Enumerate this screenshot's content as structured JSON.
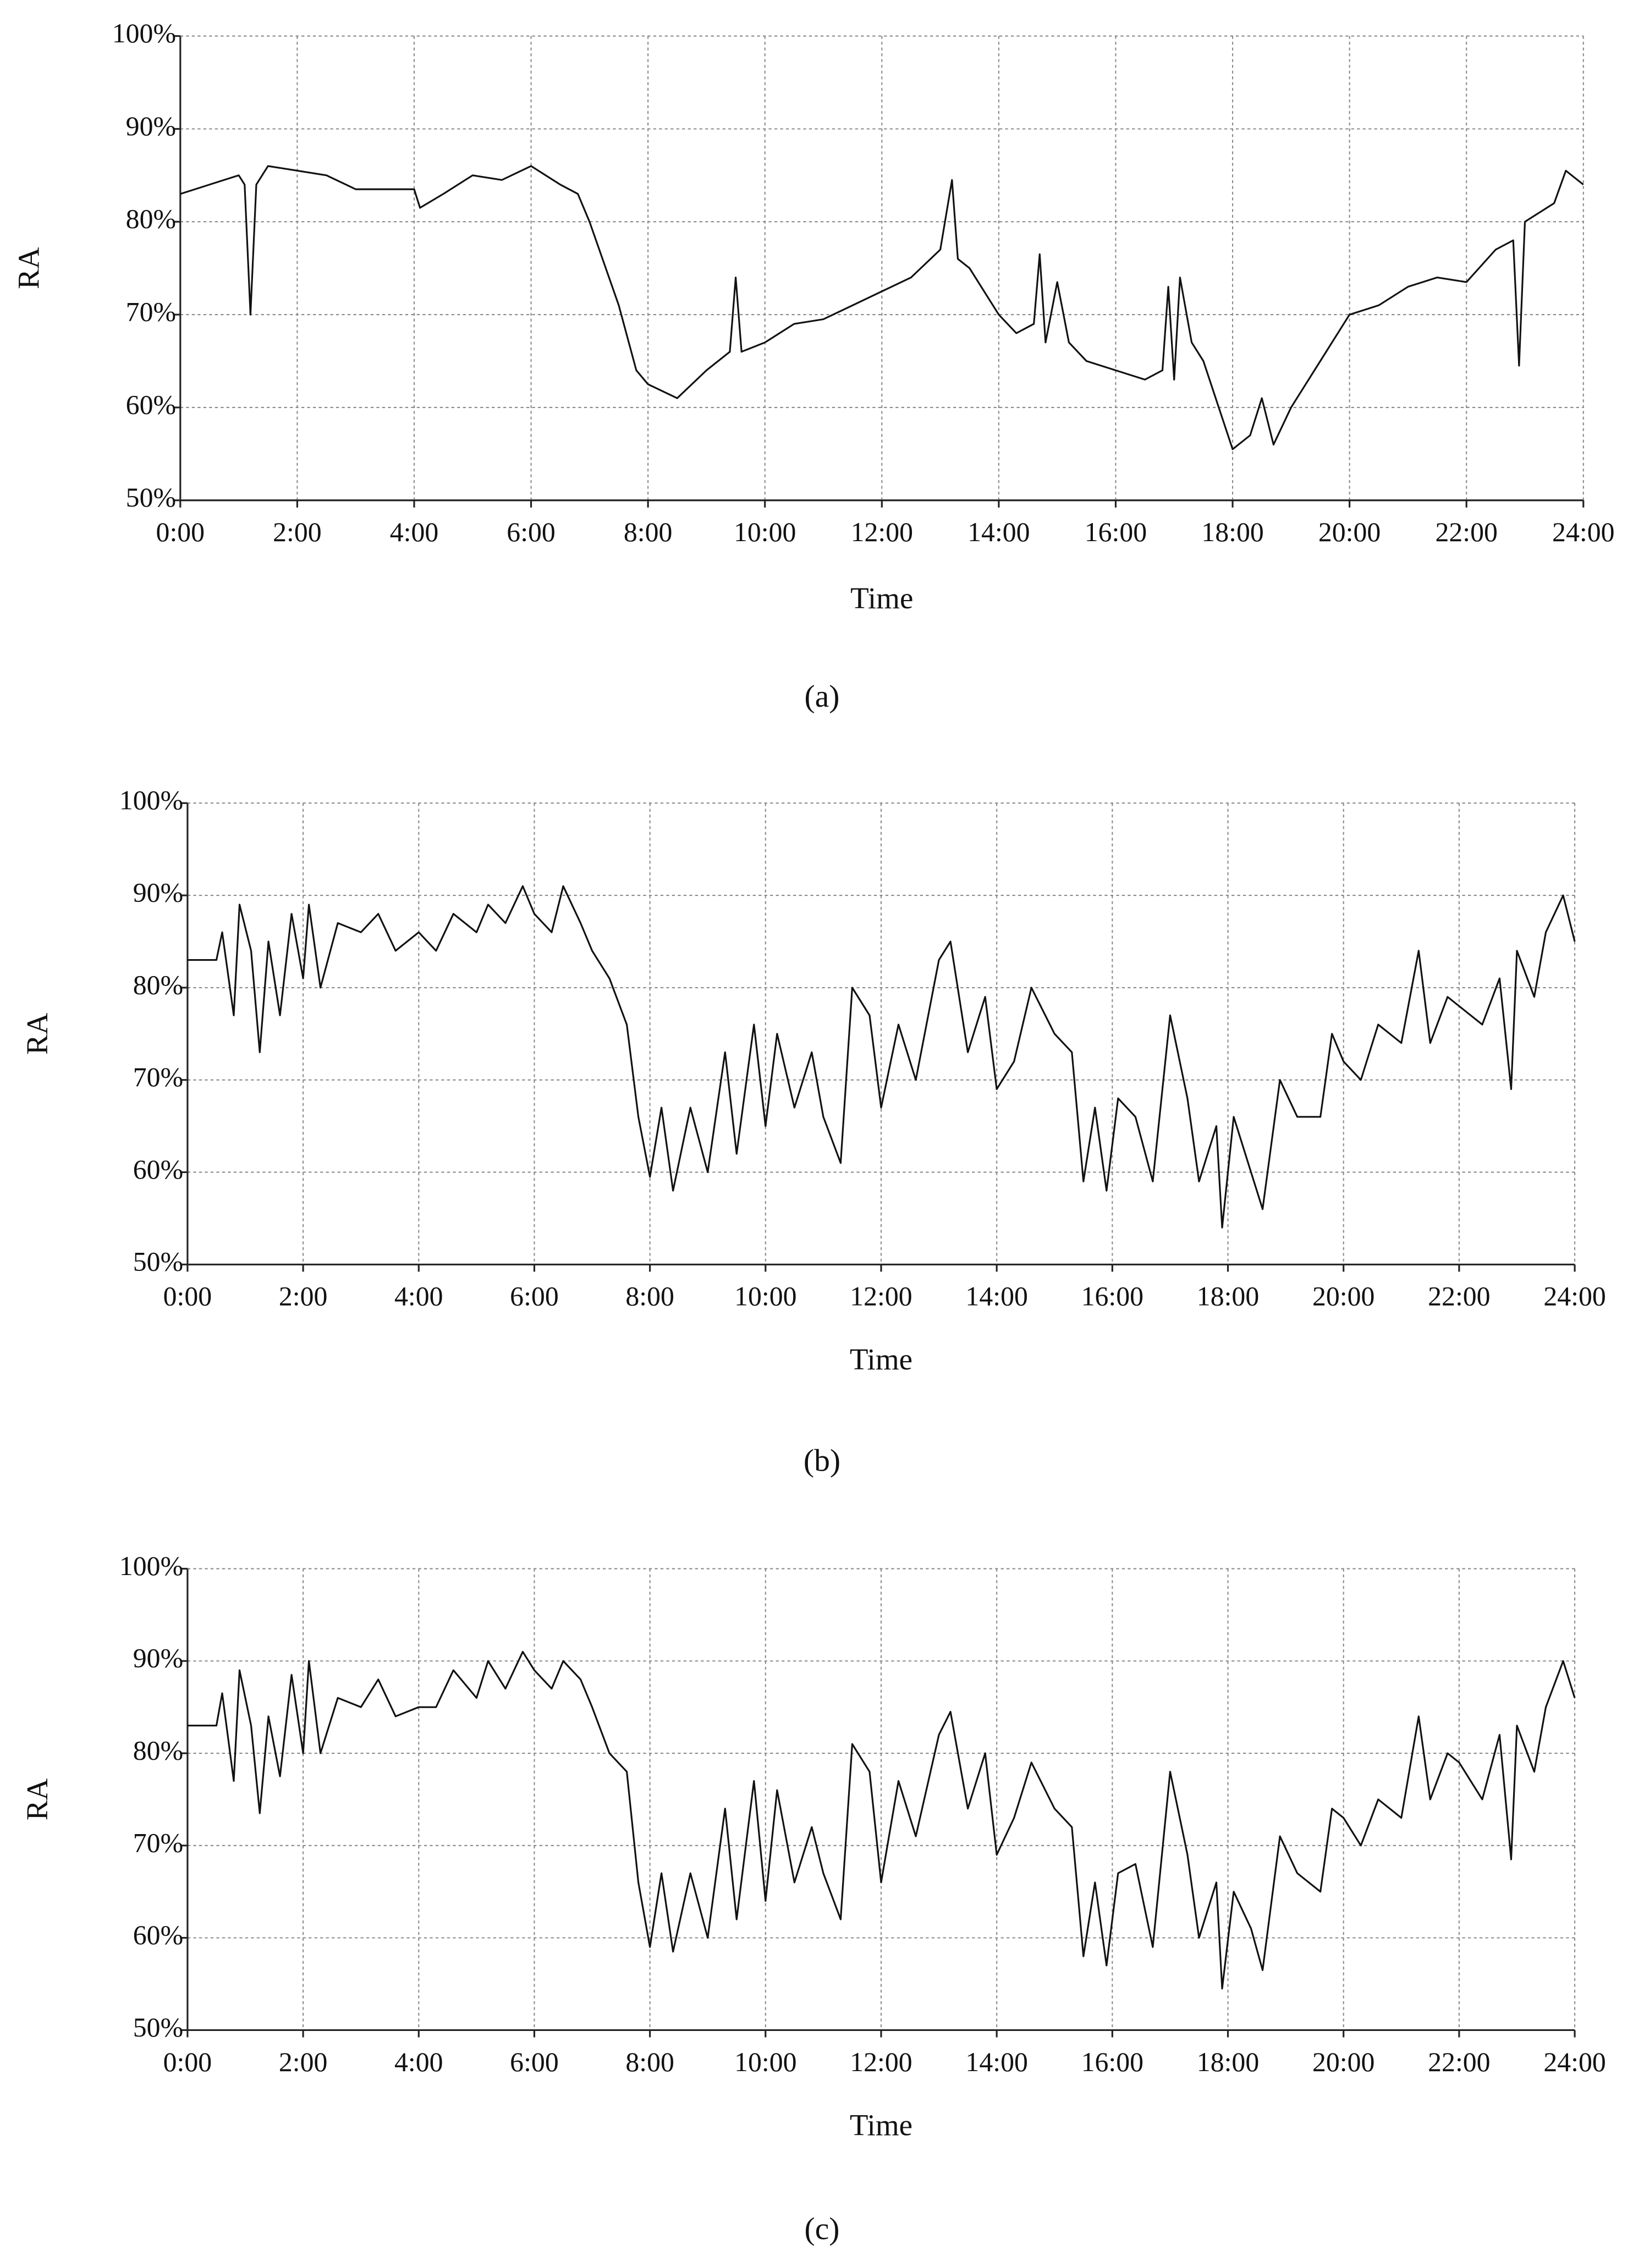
{
  "chart_data": [
    {
      "type": "line",
      "caption": "(a)",
      "x_label": "Time",
      "y_label": "RA",
      "x": [
        0,
        0.5,
        1,
        1.1,
        1.2,
        1.3,
        1.5,
        2,
        2.5,
        3,
        3.5,
        4,
        4.1,
        4.5,
        5,
        5.5,
        6,
        6.5,
        6.8,
        7,
        7.5,
        7.8,
        8,
        8.5,
        9,
        9.4,
        9.5,
        9.6,
        10,
        10.5,
        11,
        11.5,
        12,
        12.5,
        13,
        13.2,
        13.3,
        13.5,
        14,
        14.3,
        14.6,
        14.7,
        14.8,
        15,
        15.2,
        15.5,
        16,
        16.5,
        16.8,
        16.9,
        17,
        17.1,
        17.3,
        17.5,
        18,
        18.3,
        18.5,
        18.7,
        19,
        19.5,
        20,
        20.5,
        21,
        21.5,
        22,
        22.5,
        22.8,
        22.9,
        23,
        23.5,
        23.7,
        24
      ],
      "series": [
        {
          "color": "#111111",
          "values": [
            83,
            84,
            85,
            84,
            70,
            84,
            86,
            85.5,
            85,
            83.5,
            83.5,
            83.5,
            81.5,
            83,
            85,
            84.5,
            86,
            84,
            83,
            80,
            71,
            64,
            62.5,
            61,
            64,
            66,
            74,
            66,
            67,
            69,
            69.5,
            71,
            72.5,
            74,
            77,
            84.5,
            76,
            75,
            70,
            68,
            69,
            76.5,
            67,
            73.5,
            67,
            65,
            64,
            63,
            64,
            73,
            63,
            74,
            67,
            65,
            55.5,
            57,
            61,
            56,
            60,
            65,
            70,
            71,
            73,
            74,
            73.5,
            77,
            78,
            64.5,
            80,
            82,
            85.5,
            84
          ]
        }
      ],
      "xlim": [
        0,
        24
      ],
      "ylim": [
        50,
        100
      ],
      "grid": true,
      "xticks": [
        {
          "value": 0,
          "label": "0:00"
        },
        {
          "value": 2,
          "label": "2:00"
        },
        {
          "value": 4,
          "label": "4:00"
        },
        {
          "value": 6,
          "label": "6:00"
        },
        {
          "value": 8,
          "label": "8:00"
        },
        {
          "value": 10,
          "label": "10:00"
        },
        {
          "value": 12,
          "label": "12:00"
        },
        {
          "value": 14,
          "label": "14:00"
        },
        {
          "value": 16,
          "label": "16:00"
        },
        {
          "value": 18,
          "label": "18:00"
        },
        {
          "value": 20,
          "label": "20:00"
        },
        {
          "value": 22,
          "label": "22:00"
        },
        {
          "value": 24,
          "label": "24:00"
        }
      ],
      "yticks": [
        {
          "value": 50,
          "label": "50%"
        },
        {
          "value": 60,
          "label": "60%"
        },
        {
          "value": 70,
          "label": "70%"
        },
        {
          "value": 80,
          "label": "80%"
        },
        {
          "value": 90,
          "label": "90%"
        },
        {
          "value": 100,
          "label": "100%"
        }
      ]
    },
    {
      "type": "line",
      "caption": "(b)",
      "x_label": "Time",
      "y_label": "RA",
      "x": [
        0,
        0.5,
        0.6,
        0.8,
        0.9,
        1.1,
        1.25,
        1.4,
        1.6,
        1.8,
        2,
        2.1,
        2.3,
        2.6,
        3,
        3.3,
        3.6,
        4,
        4.3,
        4.6,
        5,
        5.2,
        5.5,
        5.8,
        6,
        6.3,
        6.5,
        6.8,
        7,
        7.3,
        7.6,
        7.8,
        8,
        8.2,
        8.4,
        8.7,
        9,
        9.3,
        9.5,
        9.8,
        10,
        10.2,
        10.5,
        10.8,
        11,
        11.3,
        11.5,
        11.8,
        12,
        12.3,
        12.6,
        13,
        13.2,
        13.5,
        13.8,
        14,
        14.3,
        14.6,
        15,
        15.3,
        15.5,
        15.7,
        15.9,
        16.1,
        16.4,
        16.7,
        17,
        17.3,
        17.5,
        17.8,
        17.9,
        18.1,
        18.4,
        18.6,
        18.9,
        19.2,
        19.6,
        19.8,
        20,
        20.3,
        20.6,
        21,
        21.3,
        21.5,
        21.8,
        22,
        22.4,
        22.7,
        22.9,
        23,
        23.3,
        23.5,
        23.8,
        24
      ],
      "series": [
        {
          "color": "#111111",
          "values": [
            83,
            83,
            86,
            77,
            89,
            84,
            73,
            85,
            77,
            88,
            81,
            89,
            80,
            87,
            86,
            88,
            84,
            86,
            84,
            88,
            86,
            89,
            87,
            91,
            88,
            86,
            91,
            87,
            84,
            81,
            76,
            66,
            59.5,
            67,
            58,
            67,
            60,
            73,
            62,
            76,
            65,
            75,
            67,
            73,
            66,
            61,
            80,
            77,
            67,
            76,
            70,
            83,
            85,
            73,
            79,
            69,
            72,
            80,
            75,
            73,
            59,
            67,
            58,
            68,
            66,
            59,
            77,
            68,
            59,
            65,
            54,
            66,
            60,
            56,
            70,
            66,
            66,
            75,
            72,
            70,
            76,
            74,
            84,
            74,
            79,
            78,
            76,
            81,
            69,
            84,
            79,
            86,
            90,
            85
          ]
        }
      ],
      "xlim": [
        0,
        24
      ],
      "ylim": [
        50,
        100
      ],
      "grid": true,
      "xticks": [
        {
          "value": 0,
          "label": "0:00"
        },
        {
          "value": 2,
          "label": "2:00"
        },
        {
          "value": 4,
          "label": "4:00"
        },
        {
          "value": 6,
          "label": "6:00"
        },
        {
          "value": 8,
          "label": "8:00"
        },
        {
          "value": 10,
          "label": "10:00"
        },
        {
          "value": 12,
          "label": "12:00"
        },
        {
          "value": 14,
          "label": "14:00"
        },
        {
          "value": 16,
          "label": "16:00"
        },
        {
          "value": 18,
          "label": "18:00"
        },
        {
          "value": 20,
          "label": "20:00"
        },
        {
          "value": 22,
          "label": "22:00"
        },
        {
          "value": 24,
          "label": "24:00"
        }
      ],
      "yticks": [
        {
          "value": 50,
          "label": "50%"
        },
        {
          "value": 60,
          "label": "60%"
        },
        {
          "value": 70,
          "label": "70%"
        },
        {
          "value": 80,
          "label": "80%"
        },
        {
          "value": 90,
          "label": "90%"
        },
        {
          "value": 100,
          "label": "100%"
        }
      ]
    },
    {
      "type": "line",
      "caption": "(c)",
      "x_label": "Time",
      "y_label": "RA",
      "x": [
        0,
        0.5,
        0.6,
        0.8,
        0.9,
        1.1,
        1.25,
        1.4,
        1.6,
        1.8,
        2,
        2.1,
        2.3,
        2.6,
        3,
        3.3,
        3.6,
        4,
        4.3,
        4.6,
        5,
        5.2,
        5.5,
        5.8,
        6,
        6.3,
        6.5,
        6.8,
        7,
        7.3,
        7.6,
        7.8,
        8,
        8.2,
        8.4,
        8.7,
        9,
        9.3,
        9.5,
        9.8,
        10,
        10.2,
        10.5,
        10.8,
        11,
        11.3,
        11.5,
        11.8,
        12,
        12.3,
        12.6,
        13,
        13.2,
        13.5,
        13.8,
        14,
        14.3,
        14.6,
        15,
        15.3,
        15.5,
        15.7,
        15.9,
        16.1,
        16.4,
        16.7,
        17,
        17.3,
        17.5,
        17.8,
        17.9,
        18.1,
        18.4,
        18.6,
        18.9,
        19.2,
        19.6,
        19.8,
        20,
        20.3,
        20.6,
        21,
        21.3,
        21.5,
        21.8,
        22,
        22.4,
        22.7,
        22.9,
        23,
        23.3,
        23.5,
        23.8,
        24
      ],
      "series": [
        {
          "color": "#111111",
          "values": [
            83,
            83,
            86.5,
            77,
            89,
            83,
            73.5,
            84,
            77.5,
            88.5,
            80,
            90,
            80,
            86,
            85,
            88,
            84,
            85,
            85,
            89,
            86,
            90,
            87,
            91,
            89,
            87,
            90,
            88,
            85,
            80,
            78,
            66,
            59,
            67,
            58.5,
            67,
            60,
            74,
            62,
            77,
            64,
            76,
            66,
            72,
            67,
            62,
            81,
            78,
            66,
            77,
            71,
            82,
            84.5,
            74,
            80,
            69,
            73,
            79,
            74,
            72,
            58,
            66,
            57,
            67,
            68,
            59,
            78,
            69,
            60,
            66,
            54.5,
            65,
            61,
            56.5,
            71,
            67,
            65,
            74,
            73,
            70,
            75,
            73,
            84,
            75,
            80,
            79,
            75,
            82,
            68.5,
            83,
            78,
            85,
            90,
            86
          ]
        }
      ],
      "xlim": [
        0,
        24
      ],
      "ylim": [
        50,
        100
      ],
      "grid": true,
      "xticks": [
        {
          "value": 0,
          "label": "0:00"
        },
        {
          "value": 2,
          "label": "2:00"
        },
        {
          "value": 4,
          "label": "4:00"
        },
        {
          "value": 6,
          "label": "6:00"
        },
        {
          "value": 8,
          "label": "8:00"
        },
        {
          "value": 10,
          "label": "10:00"
        },
        {
          "value": 12,
          "label": "12:00"
        },
        {
          "value": 14,
          "label": "14:00"
        },
        {
          "value": 16,
          "label": "16:00"
        },
        {
          "value": 18,
          "label": "18:00"
        },
        {
          "value": 20,
          "label": "20:00"
        },
        {
          "value": 22,
          "label": "22:00"
        },
        {
          "value": 24,
          "label": "24:00"
        }
      ],
      "yticks": [
        {
          "value": 50,
          "label": "50%"
        },
        {
          "value": 60,
          "label": "60%"
        },
        {
          "value": 70,
          "label": "70%"
        },
        {
          "value": 80,
          "label": "80%"
        },
        {
          "value": 90,
          "label": "90%"
        },
        {
          "value": 100,
          "label": "100%"
        }
      ]
    }
  ]
}
